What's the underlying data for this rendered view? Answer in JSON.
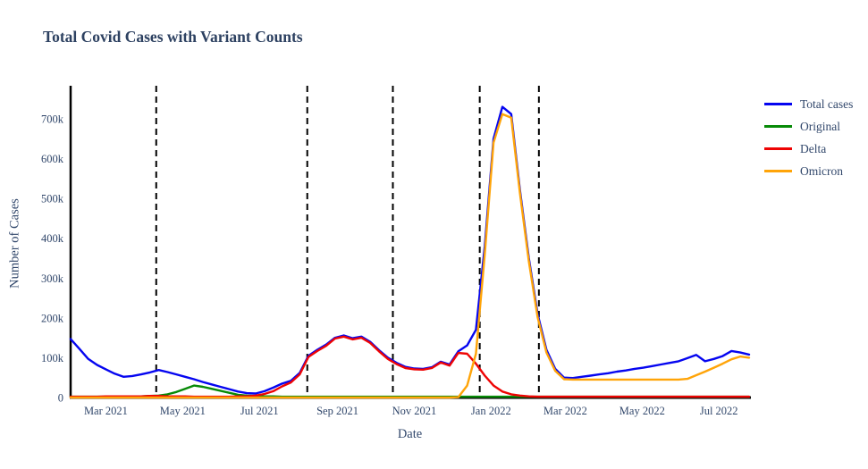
{
  "title": {
    "text": "Total Covid Cases with Variant Counts",
    "color": "#2d4161"
  },
  "chart_data": {
    "type": "line",
    "title": "Total Covid Cases with Variant Counts",
    "xlabel": "Date",
    "ylabel": "Number of Cases",
    "ylim": [
      0,
      740000
    ],
    "grid": false,
    "legend_position": "right",
    "axis_color": "#000000",
    "text_color": "#31476b",
    "x_start": "2021-02-01",
    "x_end": "2022-07-25",
    "y_ticks": [
      {
        "value": 0,
        "label": "0"
      },
      {
        "value": 100000,
        "label": "100k"
      },
      {
        "value": 200000,
        "label": "200k"
      },
      {
        "value": 300000,
        "label": "300k"
      },
      {
        "value": 400000,
        "label": "400k"
      },
      {
        "value": 500000,
        "label": "500k"
      },
      {
        "value": 600000,
        "label": "600k"
      },
      {
        "value": 700000,
        "label": "700k"
      }
    ],
    "x_ticks": [
      {
        "date": "2021-03-01",
        "label": "Mar 2021"
      },
      {
        "date": "2021-05-01",
        "label": "May 2021"
      },
      {
        "date": "2021-07-01",
        "label": "Jul 2021"
      },
      {
        "date": "2021-09-01",
        "label": "Sep 2021"
      },
      {
        "date": "2021-11-01",
        "label": "Nov 2021"
      },
      {
        "date": "2022-01-01",
        "label": "Jan 2022"
      },
      {
        "date": "2022-03-01",
        "label": "Mar 2022"
      },
      {
        "date": "2022-05-01",
        "label": "May 2022"
      },
      {
        "date": "2022-07-01",
        "label": "Jul 2022"
      }
    ],
    "event_lines": {
      "color": "#000000",
      "style": "dashed",
      "dates": [
        "2021-04-10",
        "2021-08-08",
        "2021-10-15",
        "2021-12-23",
        "2022-02-08"
      ]
    },
    "dates": [
      "2021-02-01",
      "2021-02-08",
      "2021-02-15",
      "2021-02-22",
      "2021-03-01",
      "2021-03-08",
      "2021-03-15",
      "2021-03-22",
      "2021-03-29",
      "2021-04-05",
      "2021-04-12",
      "2021-04-19",
      "2021-04-26",
      "2021-05-03",
      "2021-05-10",
      "2021-05-17",
      "2021-05-24",
      "2021-05-31",
      "2021-06-07",
      "2021-06-14",
      "2021-06-21",
      "2021-06-28",
      "2021-07-05",
      "2021-07-12",
      "2021-07-19",
      "2021-07-26",
      "2021-08-02",
      "2021-08-09",
      "2021-08-16",
      "2021-08-23",
      "2021-08-30",
      "2021-09-06",
      "2021-09-13",
      "2021-09-20",
      "2021-09-27",
      "2021-10-04",
      "2021-10-11",
      "2021-10-18",
      "2021-10-25",
      "2021-11-01",
      "2021-11-08",
      "2021-11-15",
      "2021-11-22",
      "2021-11-29",
      "2021-12-06",
      "2021-12-13",
      "2021-12-20",
      "2021-12-27",
      "2022-01-03",
      "2022-01-10",
      "2022-01-17",
      "2022-01-24",
      "2022-01-31",
      "2022-02-07",
      "2022-02-14",
      "2022-02-21",
      "2022-02-28",
      "2022-03-07",
      "2022-03-14",
      "2022-03-21",
      "2022-03-28",
      "2022-04-04",
      "2022-04-11",
      "2022-04-18",
      "2022-04-25",
      "2022-05-02",
      "2022-05-09",
      "2022-05-16",
      "2022-05-23",
      "2022-05-30",
      "2022-06-06",
      "2022-06-13",
      "2022-06-20",
      "2022-06-27",
      "2022-07-04",
      "2022-07-11",
      "2022-07-18",
      "2022-07-25"
    ],
    "series": [
      {
        "name": "Total cases",
        "color": "#0505f0",
        "values": [
          147000,
          122000,
          97000,
          82000,
          71000,
          60000,
          52000,
          54000,
          58000,
          63000,
          69000,
          64000,
          58000,
          52000,
          46000,
          39000,
          33000,
          27000,
          21000,
          15000,
          11000,
          10000,
          16000,
          25000,
          35000,
          42000,
          62000,
          105000,
          120000,
          133000,
          150000,
          156000,
          149000,
          153000,
          140000,
          119000,
          100000,
          87000,
          77000,
          73000,
          72000,
          76000,
          90000,
          83000,
          116000,
          131000,
          170000,
          380000,
          650000,
          730000,
          712000,
          520000,
          350000,
          210000,
          120000,
          72000,
          50000,
          49000,
          52000,
          55000,
          58000,
          61000,
          65000,
          68000,
          72000,
          75000,
          79000,
          83000,
          87000,
          91000,
          99000,
          107000,
          91000,
          97000,
          104000,
          117000,
          113000,
          108000
        ]
      },
      {
        "name": "Original",
        "color": "#078a07",
        "values": [
          2000,
          2000,
          2000,
          2000,
          2000,
          2000,
          2000,
          2000,
          3000,
          4000,
          5000,
          8000,
          14000,
          22000,
          30000,
          27000,
          22000,
          17000,
          12000,
          7000,
          5000,
          4000,
          3000,
          3000,
          2000,
          2000,
          2000,
          2000,
          2000,
          2000,
          2000,
          2000,
          2000,
          2000,
          2000,
          2000,
          2000,
          2000,
          2000,
          2000,
          2000,
          2000,
          2000,
          2000,
          2000,
          2000,
          2000,
          2000,
          2000,
          2000,
          2000,
          2000,
          2000,
          2000,
          2000,
          2000,
          2000,
          2000,
          2000,
          2000,
          2000,
          2000,
          2000,
          2000,
          2000,
          2000,
          2000,
          2000,
          2000,
          2000,
          2000,
          2000,
          2000,
          2000,
          2000,
          2000,
          2000,
          2000
        ]
      },
      {
        "name": "Delta",
        "color": "#ee0404",
        "values": [
          2000,
          2000,
          2000,
          2000,
          3000,
          3000,
          3000,
          3000,
          3000,
          4000,
          4000,
          3000,
          3000,
          3000,
          2000,
          2000,
          2000,
          2000,
          2000,
          3000,
          3000,
          5000,
          9000,
          16000,
          28000,
          38000,
          58000,
          102000,
          117000,
          130000,
          148000,
          153000,
          146000,
          150000,
          137000,
          116000,
          97000,
          84000,
          74000,
          71000,
          70000,
          74000,
          88000,
          80000,
          112000,
          110000,
          85000,
          55000,
          30000,
          15000,
          8000,
          5000,
          3000,
          2000,
          2000,
          2000,
          2000,
          2000,
          2000,
          2000,
          2000,
          2000,
          2000,
          2000,
          2000,
          2000,
          2000,
          2000,
          2000,
          2000,
          2000,
          2000,
          2000,
          2000,
          2000,
          2000,
          2000,
          2000
        ]
      },
      {
        "name": "Omicron",
        "color": "#ffa408",
        "values": [
          0,
          0,
          0,
          0,
          0,
          0,
          0,
          0,
          0,
          0,
          0,
          0,
          0,
          0,
          0,
          0,
          0,
          0,
          0,
          0,
          0,
          0,
          0,
          0,
          0,
          0,
          0,
          0,
          0,
          0,
          0,
          0,
          0,
          0,
          0,
          0,
          0,
          0,
          0,
          0,
          0,
          0,
          0,
          0,
          1000,
          30000,
          110000,
          360000,
          640000,
          712000,
          703000,
          512000,
          342000,
          202000,
          113000,
          67000,
          46000,
          45000,
          45000,
          45000,
          45000,
          45000,
          45000,
          45000,
          45000,
          45000,
          45000,
          45000,
          45000,
          45000,
          47000,
          56000,
          65000,
          75000,
          85000,
          96000,
          103000,
          100000
        ]
      }
    ]
  }
}
